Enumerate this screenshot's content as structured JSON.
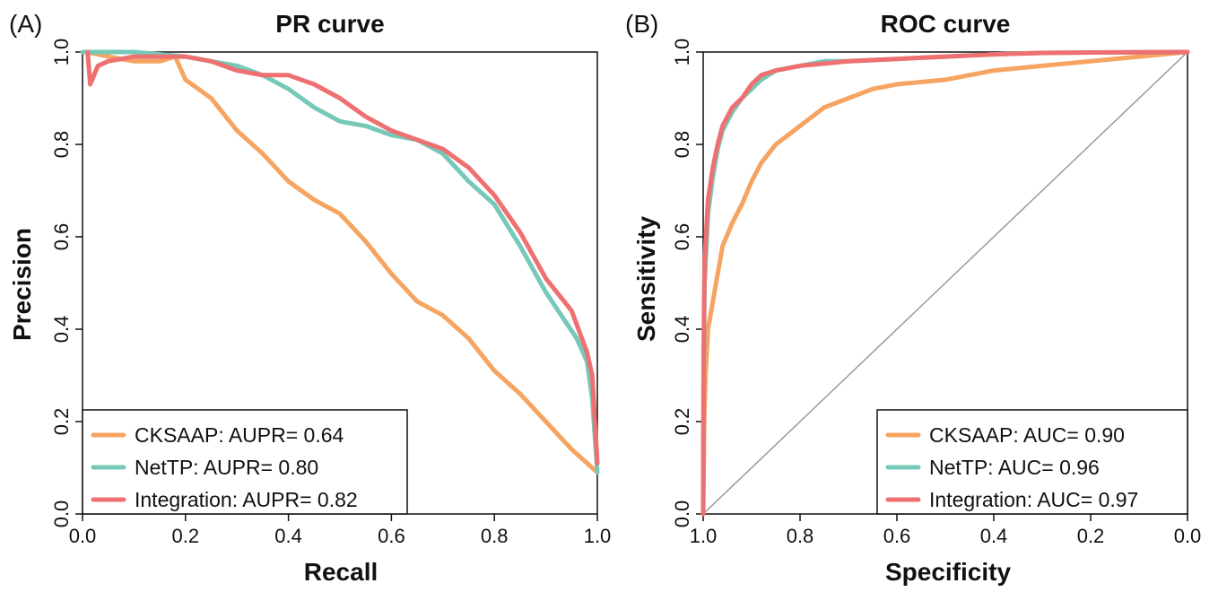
{
  "chart_data": [
    {
      "panel_label": "(A)",
      "type": "line",
      "title": "PR curve",
      "xlabel": "Recall",
      "ylabel": "Precision",
      "xlim": [
        0,
        1
      ],
      "ylim": [
        0,
        1
      ],
      "x_reversed": false,
      "xticks": [
        "0.0",
        "0.2",
        "0.4",
        "0.6",
        "0.8",
        "1.0"
      ],
      "yticks": [
        "0.0",
        "0.2",
        "0.4",
        "0.6",
        "0.8",
        "1.0"
      ],
      "grid": false,
      "legend_position": "bottom-left",
      "series": [
        {
          "name": "CKSAAP: AUPR= 0.64",
          "color": "#F5A462",
          "points": [
            [
              0.01,
              1.0
            ],
            [
              0.05,
              0.99
            ],
            [
              0.1,
              0.98
            ],
            [
              0.15,
              0.98
            ],
            [
              0.18,
              0.99
            ],
            [
              0.2,
              0.94
            ],
            [
              0.25,
              0.9
            ],
            [
              0.3,
              0.83
            ],
            [
              0.35,
              0.78
            ],
            [
              0.4,
              0.72
            ],
            [
              0.45,
              0.68
            ],
            [
              0.5,
              0.65
            ],
            [
              0.55,
              0.59
            ],
            [
              0.6,
              0.52
            ],
            [
              0.65,
              0.46
            ],
            [
              0.7,
              0.43
            ],
            [
              0.75,
              0.38
            ],
            [
              0.8,
              0.31
            ],
            [
              0.85,
              0.26
            ],
            [
              0.9,
              0.2
            ],
            [
              0.95,
              0.14
            ],
            [
              1.0,
              0.09
            ]
          ]
        },
        {
          "name": "NetTP: AUPR= 0.80",
          "color": "#76C8B8",
          "points": [
            [
              0.0,
              1.0
            ],
            [
              0.1,
              1.0
            ],
            [
              0.2,
              0.99
            ],
            [
              0.25,
              0.98
            ],
            [
              0.3,
              0.97
            ],
            [
              0.35,
              0.95
            ],
            [
              0.4,
              0.92
            ],
            [
              0.45,
              0.88
            ],
            [
              0.5,
              0.85
            ],
            [
              0.55,
              0.84
            ],
            [
              0.6,
              0.82
            ],
            [
              0.65,
              0.81
            ],
            [
              0.7,
              0.78
            ],
            [
              0.75,
              0.72
            ],
            [
              0.8,
              0.67
            ],
            [
              0.85,
              0.58
            ],
            [
              0.9,
              0.48
            ],
            [
              0.93,
              0.43
            ],
            [
              0.96,
              0.38
            ],
            [
              0.98,
              0.33
            ],
            [
              0.99,
              0.25
            ],
            [
              1.0,
              0.09
            ]
          ]
        },
        {
          "name": "Integration: AUPR= 0.82",
          "color": "#EE7070",
          "points": [
            [
              0.01,
              1.0
            ],
            [
              0.015,
              0.93
            ],
            [
              0.03,
              0.97
            ],
            [
              0.05,
              0.98
            ],
            [
              0.1,
              0.99
            ],
            [
              0.2,
              0.99
            ],
            [
              0.25,
              0.98
            ],
            [
              0.3,
              0.96
            ],
            [
              0.35,
              0.95
            ],
            [
              0.4,
              0.95
            ],
            [
              0.45,
              0.93
            ],
            [
              0.5,
              0.9
            ],
            [
              0.55,
              0.86
            ],
            [
              0.6,
              0.83
            ],
            [
              0.65,
              0.81
            ],
            [
              0.7,
              0.79
            ],
            [
              0.75,
              0.75
            ],
            [
              0.8,
              0.69
            ],
            [
              0.85,
              0.61
            ],
            [
              0.9,
              0.51
            ],
            [
              0.95,
              0.44
            ],
            [
              0.98,
              0.35
            ],
            [
              0.99,
              0.3
            ],
            [
              1.0,
              0.11
            ]
          ]
        }
      ]
    },
    {
      "panel_label": "(B)",
      "type": "line",
      "title": "ROC curve",
      "xlabel": "Specificity",
      "ylabel": "Sensitivity",
      "xlim": [
        1,
        0
      ],
      "ylim": [
        0,
        1
      ],
      "x_reversed": true,
      "xticks": [
        "1.0",
        "0.8",
        "0.6",
        "0.4",
        "0.2",
        "0.0"
      ],
      "yticks": [
        "0.0",
        "0.2",
        "0.4",
        "0.6",
        "0.8",
        "1.0"
      ],
      "grid": false,
      "legend_position": "bottom-right",
      "diagonal_reference": true,
      "series": [
        {
          "name": "CKSAAP: AUC= 0.90",
          "color": "#F5A462",
          "points": [
            [
              1.0,
              0.0
            ],
            [
              0.998,
              0.2
            ],
            [
              0.995,
              0.3
            ],
            [
              0.99,
              0.4
            ],
            [
              0.98,
              0.46
            ],
            [
              0.97,
              0.52
            ],
            [
              0.96,
              0.58
            ],
            [
              0.94,
              0.63
            ],
            [
              0.92,
              0.67
            ],
            [
              0.9,
              0.72
            ],
            [
              0.88,
              0.76
            ],
            [
              0.85,
              0.8
            ],
            [
              0.8,
              0.84
            ],
            [
              0.75,
              0.88
            ],
            [
              0.7,
              0.9
            ],
            [
              0.65,
              0.92
            ],
            [
              0.6,
              0.93
            ],
            [
              0.5,
              0.94
            ],
            [
              0.4,
              0.96
            ],
            [
              0.3,
              0.97
            ],
            [
              0.2,
              0.98
            ],
            [
              0.1,
              0.99
            ],
            [
              0.0,
              1.0
            ]
          ]
        },
        {
          "name": "NetTP: AUC= 0.96",
          "color": "#76C8B8",
          "points": [
            [
              1.0,
              0.0
            ],
            [
              0.999,
              0.3
            ],
            [
              0.997,
              0.5
            ],
            [
              0.99,
              0.65
            ],
            [
              0.98,
              0.73
            ],
            [
              0.97,
              0.79
            ],
            [
              0.96,
              0.83
            ],
            [
              0.94,
              0.87
            ],
            [
              0.92,
              0.9
            ],
            [
              0.9,
              0.92
            ],
            [
              0.88,
              0.94
            ],
            [
              0.85,
              0.96
            ],
            [
              0.8,
              0.97
            ],
            [
              0.75,
              0.98
            ],
            [
              0.7,
              0.98
            ],
            [
              0.6,
              0.985
            ],
            [
              0.5,
              0.99
            ],
            [
              0.4,
              0.995
            ],
            [
              0.3,
              0.998
            ],
            [
              0.2,
              0.999
            ],
            [
              0.0,
              1.0
            ]
          ]
        },
        {
          "name": "Integration: AUC= 0.97",
          "color": "#EE7070",
          "points": [
            [
              1.0,
              0.0
            ],
            [
              0.999,
              0.35
            ],
            [
              0.997,
              0.55
            ],
            [
              0.99,
              0.68
            ],
            [
              0.98,
              0.75
            ],
            [
              0.97,
              0.8
            ],
            [
              0.96,
              0.84
            ],
            [
              0.94,
              0.88
            ],
            [
              0.92,
              0.9
            ],
            [
              0.9,
              0.93
            ],
            [
              0.88,
              0.95
            ],
            [
              0.85,
              0.96
            ],
            [
              0.8,
              0.97
            ],
            [
              0.75,
              0.975
            ],
            [
              0.7,
              0.98
            ],
            [
              0.6,
              0.985
            ],
            [
              0.5,
              0.99
            ],
            [
              0.4,
              0.995
            ],
            [
              0.3,
              0.998
            ],
            [
              0.2,
              0.999
            ],
            [
              0.0,
              1.0
            ]
          ]
        }
      ]
    }
  ]
}
